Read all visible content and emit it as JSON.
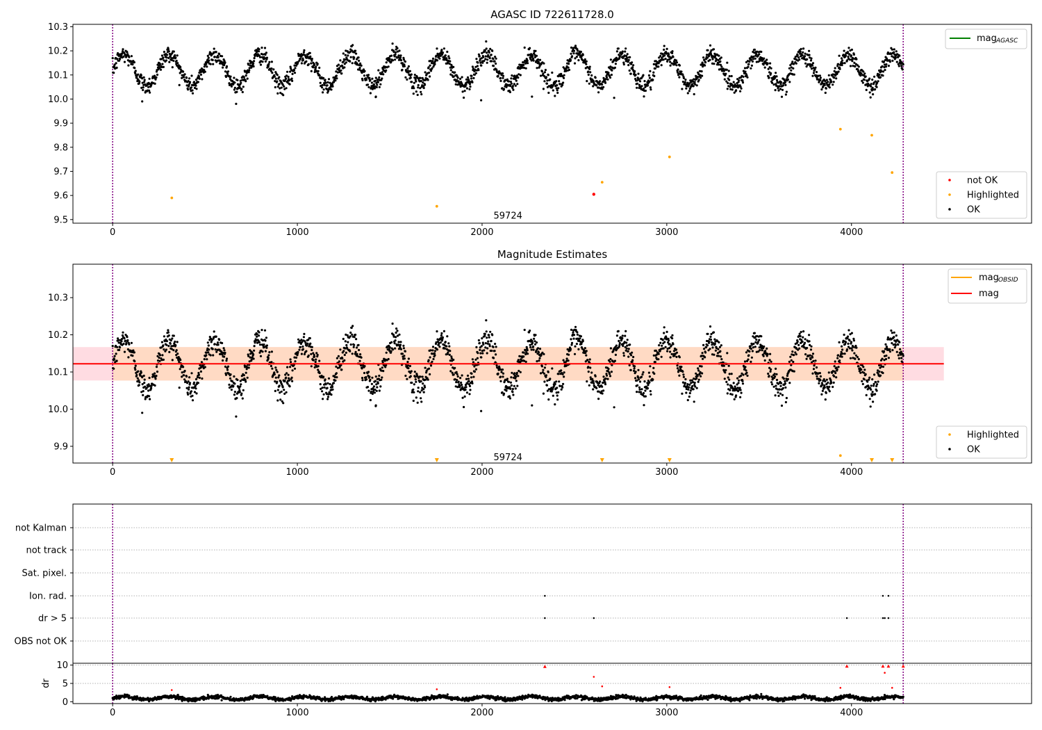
{
  "figure": {
    "colors": {
      "ok": "#000000",
      "not_ok": "#ff0000",
      "highlighted": "#ffa500",
      "mag_agasc": "#008000",
      "mag_obsid": "#ffa500",
      "mag": "#ff0000",
      "obs_window": "#800080",
      "band_pink": "#ffc0cb",
      "band_orange": "#ffdab9",
      "grid": "#b0b0b0"
    }
  },
  "chart_data": [
    {
      "type": "scatter",
      "title": "AGASC ID 722611728.0",
      "xlabel": "",
      "ylabel": "",
      "xlim": [
        -215,
        4975
      ],
      "ylim": [
        9.485,
        10.31
      ],
      "xticks": [
        0,
        1000,
        2000,
        3000,
        4000
      ],
      "yticks": [
        9.5,
        9.6,
        9.7,
        9.8,
        9.9,
        10.0,
        10.1,
        10.2,
        10.3
      ],
      "ytick_labels": [
        "9.5",
        "9.6",
        "9.7",
        "9.8",
        "9.9",
        "10.0",
        "10.1",
        "10.2",
        "10.3"
      ],
      "obs_lines": [
        0,
        4280
      ],
      "annotation": {
        "text": "59724",
        "x": 2140,
        "y": 9.515
      },
      "ok_model": {
        "x_start": 0,
        "x_end": 4280,
        "count": 2300,
        "mean": 10.12,
        "amplitude": 0.065,
        "period": 245,
        "noise": 0.018
      },
      "series": [
        {
          "name": "not OK",
          "color": "#ff0000",
          "points": [
            [
              2605,
              9.605
            ]
          ]
        },
        {
          "name": "Highlighted",
          "color": "#ffa500",
          "points": [
            [
              320,
              9.59
            ],
            [
              1755,
              9.555
            ],
            [
              2650,
              9.655
            ],
            [
              3015,
              9.76
            ],
            [
              3940,
              9.875
            ],
            [
              4110,
              9.85
            ],
            [
              4220,
              9.695
            ]
          ]
        },
        {
          "name": "OK",
          "color": "#000000",
          "points": [
            [
              160,
              9.99
            ],
            [
              1425,
              10.01
            ],
            [
              1995,
              9.995
            ],
            [
              2715,
              10.005
            ],
            [
              2270,
              10.01
            ]
          ]
        }
      ],
      "legend": {
        "top_right": [
          "mag_AGASC"
        ],
        "bottom_right": [
          "not OK",
          "Highlighted",
          "OK"
        ]
      },
      "legend_labels": {
        "mag_base": "mag",
        "mag_sub": "AGASC"
      }
    },
    {
      "type": "scatter",
      "title": "Magnitude Estimates",
      "xlabel": "",
      "ylabel": "",
      "xlim": [
        -215,
        4975
      ],
      "ylim": [
        9.855,
        10.39
      ],
      "xticks": [
        0,
        1000,
        2000,
        3000,
        4000
      ],
      "yticks": [
        9.9,
        10.0,
        10.1,
        10.2,
        10.3
      ],
      "ytick_labels": [
        "9.9",
        "10.0",
        "10.1",
        "10.2",
        "10.3"
      ],
      "obs_lines": [
        0,
        4280
      ],
      "annotation": {
        "text": "59724",
        "x": 2140,
        "y": 9.87
      },
      "mag_value": 10.122,
      "mag_band": [
        10.077,
        10.167
      ],
      "mag_band_x": [
        -215,
        4500
      ],
      "obsid_band_x": [
        0,
        4280
      ],
      "ok_model": {
        "x_start": 0,
        "x_end": 4280,
        "count": 2300,
        "mean": 10.12,
        "amplitude": 0.065,
        "period": 245,
        "noise": 0.018
      },
      "series": [
        {
          "name": "Highlighted",
          "color": "#ffa500",
          "points": [
            [
              3940,
              9.875
            ]
          ]
        },
        {
          "name": "Highlighted (below axis)",
          "color": "#ffa500",
          "points": [
            [
              320,
              9.86
            ],
            [
              1755,
              9.86
            ],
            [
              2650,
              9.86
            ],
            [
              3015,
              9.86
            ],
            [
              4110,
              9.86
            ],
            [
              4220,
              9.86
            ]
          ]
        },
        {
          "name": "OK",
          "color": "#000000",
          "points": [
            [
              160,
              9.99
            ],
            [
              1425,
              10.01
            ],
            [
              1995,
              9.995
            ],
            [
              2715,
              10.005
            ],
            [
              2270,
              10.01
            ]
          ]
        }
      ],
      "legend": {
        "top_right": [
          "mag_OBSID",
          "mag"
        ],
        "bottom_right": [
          "Highlighted",
          "OK"
        ]
      },
      "legend_labels": {
        "mag_base": "mag",
        "mag_sub": "OBSID",
        "mag": "mag"
      }
    },
    {
      "type": "scatter",
      "title": "",
      "xlim": [
        -215,
        4975
      ],
      "categories": [
        "not Kalman",
        "not track",
        "Sat. pixel.",
        "Ion. rad.",
        "dr > 5",
        "OBS not OK"
      ],
      "obs_lines": [
        0,
        4280
      ],
      "flags": {
        "Ion. rad.": [
          2340,
          4170,
          4200
        ],
        "dr > 5": [
          2340,
          2605,
          3975,
          4170,
          4180,
          4200
        ]
      }
    },
    {
      "type": "scatter",
      "title": "",
      "xlabel": "",
      "ylabel": "dr",
      "xlim": [
        -215,
        4975
      ],
      "ylim": [
        -0.5,
        10.5
      ],
      "xticks": [
        0,
        1000,
        2000,
        3000,
        4000
      ],
      "yticks": [
        0,
        5,
        10
      ],
      "ytick_labels": [
        "0",
        "5",
        "10"
      ],
      "obs_lines": [
        0,
        4280
      ],
      "ok_model": {
        "x_start": 0,
        "x_end": 4280,
        "count": 2300,
        "mean": 1.0,
        "amplitude": 0.4,
        "period": 245,
        "noise": 0.25
      },
      "series": [
        {
          "name": "not OK",
          "color": "#ff0000",
          "points": [
            [
              320,
              3.2
            ],
            [
              1755,
              3.4
            ],
            [
              2340,
              9.6
            ],
            [
              2605,
              6.8
            ],
            [
              2650,
              4.2
            ],
            [
              3015,
              4.0
            ],
            [
              3940,
              3.8
            ],
            [
              3975,
              9.7
            ],
            [
              4170,
              9.7
            ],
            [
              4180,
              7.9
            ],
            [
              4200,
              9.7
            ],
            [
              4220,
              3.8
            ],
            [
              4280,
              9.7
            ]
          ]
        }
      ]
    }
  ]
}
